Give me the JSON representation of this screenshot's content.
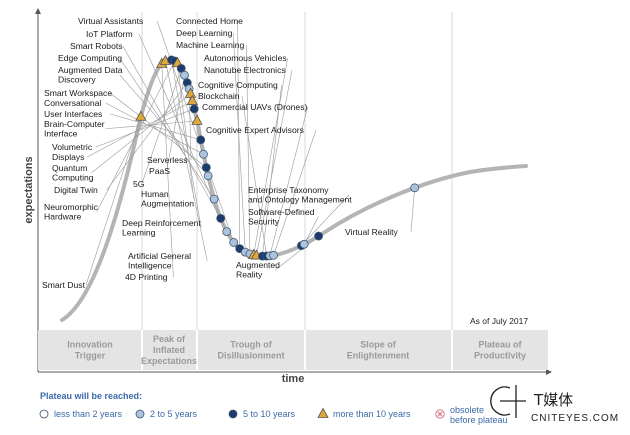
{
  "chart_data": {
    "type": "scatter",
    "as_of": "As of July 2017",
    "ylabel": "expectations",
    "xlabel": "time",
    "phases": [
      [
        "Innovation",
        "Trigger"
      ],
      [
        "Peak of",
        "Inflated",
        "Expectations"
      ],
      [
        "Trough of",
        "Disillusionment"
      ],
      [
        "Slope of",
        "Enlightenment"
      ],
      [
        "Plateau of",
        "Productivity"
      ]
    ],
    "legend": {
      "title": "Plateau will be reached:",
      "items": [
        {
          "key": "lt2",
          "label": "less than 2 years",
          "marker": "circle",
          "color": "#ffffff"
        },
        {
          "key": "2to5",
          "label": "2 to 5 years",
          "marker": "circle",
          "color": "#aac4de"
        },
        {
          "key": "5to10",
          "label": "5 to 10 years",
          "marker": "circle",
          "color": "#1b3a6e"
        },
        {
          "key": "gt10",
          "label": "more than 10 years",
          "marker": "triangle",
          "color": "#e0a83a"
        },
        {
          "key": "obs",
          "label": "obsolete before plateau",
          "marker": "cross",
          "color": "#d47a8a"
        }
      ]
    },
    "points": [
      {
        "name": "Smart Dust",
        "x": 0.17,
        "cat": "gt10"
      },
      {
        "name": "4D Printing",
        "x": 0.215,
        "cat": "gt10"
      },
      {
        "name": "Artificial General Intelligence",
        "x": 0.223,
        "cat": "gt10"
      },
      {
        "name": "Deep Reinforcement Learning",
        "x": 0.236,
        "cat": "5to10"
      },
      {
        "name": "Neuromorphic Hardware",
        "x": 0.243,
        "cat": "5to10"
      },
      {
        "name": "Human Augmentation",
        "x": 0.249,
        "cat": "gt10"
      },
      {
        "name": "5G",
        "x": 0.257,
        "cat": "5to10"
      },
      {
        "name": "PaaS",
        "x": 0.264,
        "cat": "2to5"
      },
      {
        "name": "Digital Twin",
        "x": 0.27,
        "cat": "5to10"
      },
      {
        "name": "Serverless PaaS",
        "x": 0.274,
        "cat": "2to5"
      },
      {
        "name": "Quantum Computing",
        "x": 0.277,
        "cat": "gt10"
      },
      {
        "name": "Displays",
        "x": 0.281,
        "cat": "gt10"
      },
      {
        "name": "Volumetric",
        "x": 0.285,
        "cat": "5to10"
      },
      {
        "name": "Brain-Computer Interface",
        "x": 0.291,
        "cat": "gt10"
      },
      {
        "name": "User Interfaces",
        "x": 0.299,
        "cat": "5to10"
      },
      {
        "name": "Conversational",
        "x": 0.305,
        "cat": "2to5"
      },
      {
        "name": "Smart Workspace",
        "x": 0.311,
        "cat": "5to10"
      },
      {
        "name": "Augmented Data Discovery",
        "x": 0.315,
        "cat": "2to5"
      },
      {
        "name": "Edge Computing",
        "x": 0.328,
        "cat": "2to5"
      },
      {
        "name": "Smart Robots",
        "x": 0.342,
        "cat": "5to10"
      },
      {
        "name": "IoT Platform",
        "x": 0.355,
        "cat": "2to5"
      },
      {
        "name": "Virtual Assistants",
        "x": 0.37,
        "cat": "2to5"
      },
      {
        "name": "Connected Home",
        "x": 0.383,
        "cat": "5to10"
      },
      {
        "name": "Deep Learning",
        "x": 0.395,
        "cat": "2to5"
      },
      {
        "name": "Machine Learning",
        "x": 0.405,
        "cat": "2to5"
      },
      {
        "name": "Autonomous Vehicles",
        "x": 0.413,
        "cat": "gt10"
      },
      {
        "name": "Nanotube Electronics",
        "x": 0.419,
        "cat": "gt10"
      },
      {
        "name": "Cognitive Computing",
        "x": 0.432,
        "cat": "5to10"
      },
      {
        "name": "Blockchain",
        "x": 0.441,
        "cat": "5to10"
      },
      {
        "name": "Commercial UAVs (Drones)",
        "x": 0.448,
        "cat": "2to5"
      },
      {
        "name": "Cognitive Expert Advisors",
        "x": 0.456,
        "cat": "2to5"
      },
      {
        "name": "Enterprise Taxonomy and Ontology Management",
        "x": 0.516,
        "cat": "5to10"
      },
      {
        "name": "Software-Defined Security",
        "x": 0.522,
        "cat": "2to5"
      },
      {
        "name": "Augmented Reality",
        "x": 0.553,
        "cat": "5to10"
      },
      {
        "name": "Virtual Reality",
        "x": 0.76,
        "cat": "2to5"
      }
    ]
  },
  "watermark": {
    "cn": "T媒体",
    "en": "CNITEYES.COM"
  }
}
